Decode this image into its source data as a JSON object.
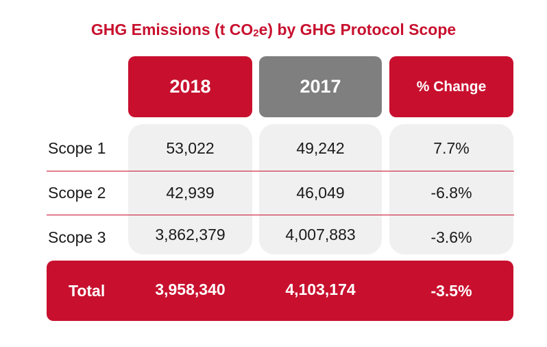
{
  "chart_data": {
    "type": "table",
    "title": "GHG Emissions (t CO",
    "title_sub": "2",
    "title_suffix": "e) by GHG Protocol Scope",
    "columns": [
      "2018",
      "2017",
      "% Change"
    ],
    "rows": [
      {
        "label": "Scope 1",
        "values": [
          "53,022",
          "49,242",
          "7.7%"
        ]
      },
      {
        "label": "Scope 2",
        "values": [
          "42,939",
          "46,049",
          "-6.8%"
        ]
      },
      {
        "label": "Scope 3",
        "values": [
          "3,862,379",
          "4,007,883",
          "-3.6%"
        ]
      }
    ],
    "total": {
      "label": "Total",
      "values": [
        "3,958,340",
        "4,103,174",
        "-3.5%"
      ]
    }
  },
  "colors": {
    "accent": "#c8102e",
    "header_gray": "#7f7f7f",
    "cell_bg": "#f0f0f0"
  }
}
